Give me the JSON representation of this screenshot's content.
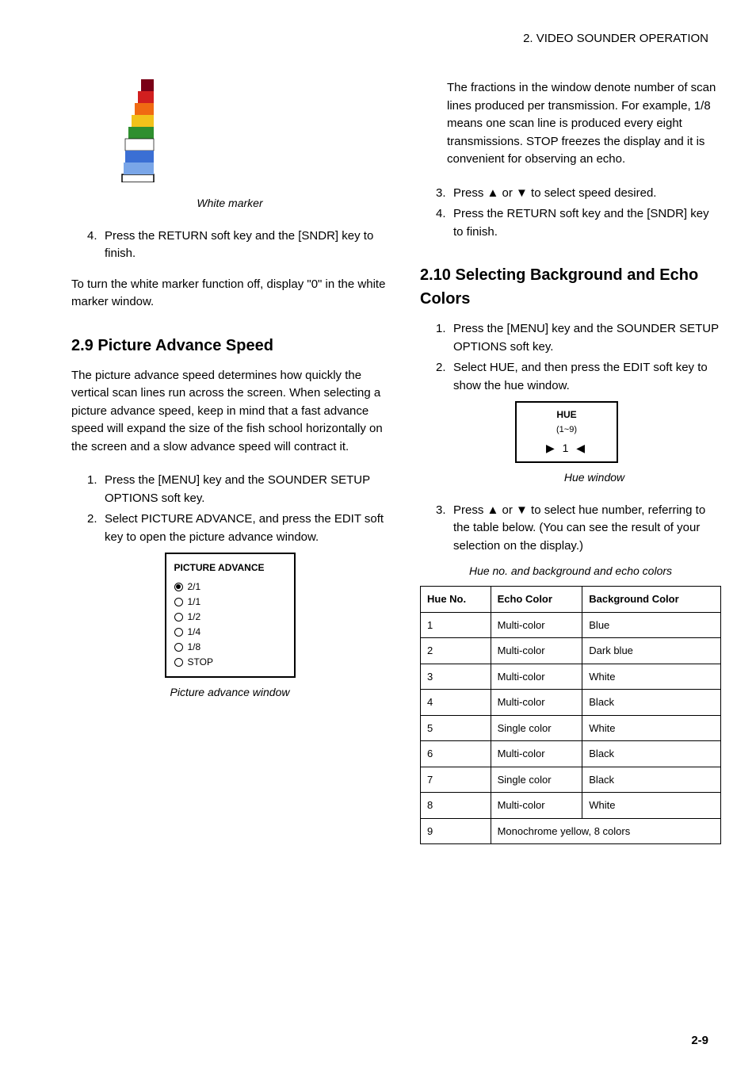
{
  "header": {
    "section": "2. VIDEO SOUNDER OPERATION"
  },
  "left": {
    "white_marker_figure": {
      "caption": "White marker",
      "bars": [
        {
          "color": "#7a0016",
          "h": 10
        },
        {
          "color": "#d11f1f",
          "h": 10
        },
        {
          "color": "#f06a12",
          "h": 10
        },
        {
          "color": "#f2c21b",
          "h": 10
        },
        {
          "color": "#2e8f2e",
          "h": 10
        },
        {
          "color": "#ffffff",
          "h": 10
        },
        {
          "color": "#3b6fd4",
          "h": 10
        },
        {
          "color": "#7aa6e8",
          "h": 10
        }
      ],
      "border": "#000000"
    },
    "step4": "Press the RETURN soft key and the [SNDR] key to finish.",
    "off_note": "To turn the white marker function off, display \"0\" in the white marker window.",
    "sec_2_9": {
      "title": "2.9 Picture Advance Speed",
      "intro": "The picture advance speed determines how quickly the vertical scan lines run across the screen. When selecting a picture advance speed, keep in mind that a fast advance speed will expand the size of the fish school horizontally on the screen and a slow advance speed will contract it.",
      "step1": "Press the [MENU] key and the SOUNDER SETUP OPTIONS soft key.",
      "step2": "Select PICTURE ADVANCE, and press the EDIT soft key to open the picture advance window.",
      "window": {
        "title": "PICTURE ADVANCE",
        "options": [
          "2/1",
          "1/1",
          "1/2",
          "1/4",
          "1/8",
          "STOP"
        ],
        "selected": 0,
        "caption": "Picture advance window"
      }
    }
  },
  "right": {
    "fractions_para": "The fractions in the window denote number of scan lines produced per transmission. For example, 1/8 means one scan line is produced every eight transmissions. STOP freezes the display and it is convenient for observing an echo.",
    "step3": "Press ▲ or ▼ to select speed desired.",
    "step4": "Press the RETURN soft key and the [SNDR] key to finish.",
    "sec_2_10": {
      "title": "2.10 Selecting Background and Echo Colors",
      "step1": "Press the [MENU] key and the SOUNDER SETUP OPTIONS soft key.",
      "step2": "Select HUE, and then press the EDIT soft key to show the hue window.",
      "hue_window": {
        "title": "HUE",
        "range": "(1~9)",
        "value": "▶ 1 ◀",
        "caption": "Hue window"
      },
      "step3": "Press ▲ or ▼ to select hue number, referring to the table below. (You can see the result of your selection on the display.)",
      "table_caption": "Hue no. and background and echo colors"
    }
  },
  "hue_table": {
    "columns": [
      "Hue No.",
      "Echo Color",
      "Background Color"
    ],
    "rows": [
      [
        "1",
        "Multi-color",
        "Blue"
      ],
      [
        "2",
        "Multi-color",
        "Dark blue"
      ],
      [
        "3",
        "Multi-color",
        "White"
      ],
      [
        "4",
        "Multi-color",
        "Black"
      ],
      [
        "5",
        "Single color",
        "White"
      ],
      [
        "6",
        "Multi-color",
        "Black"
      ],
      [
        "7",
        "Single color",
        "Black"
      ],
      [
        "8",
        "Multi-color",
        "White"
      ],
      [
        "9",
        "Monochrome yellow, 8 colors",
        ""
      ]
    ]
  },
  "page_number": "2-9"
}
